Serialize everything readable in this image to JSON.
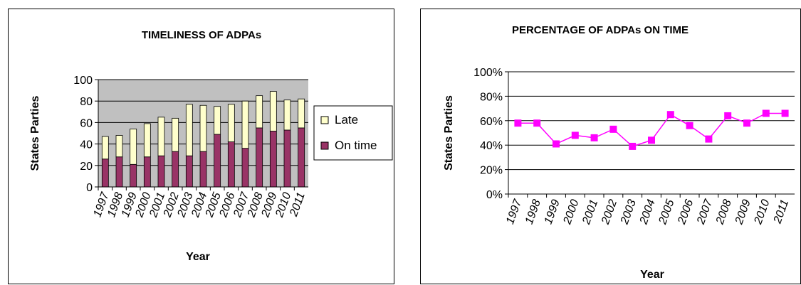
{
  "chart_data": [
    {
      "type": "bar",
      "stacked": true,
      "title": "TIMELINESS OF ADPAs",
      "xlabel": "Year",
      "ylabel": "States Parties",
      "ylim": [
        0,
        100
      ],
      "yticks": [
        0,
        20,
        40,
        60,
        80,
        100
      ],
      "categories": [
        "1997",
        "1998",
        "1999",
        "2000",
        "2001",
        "2002",
        "2003",
        "2004",
        "2005",
        "2006",
        "2007",
        "2008",
        "2009",
        "2010",
        "2011"
      ],
      "series": [
        {
          "name": "On time",
          "color": "#993366",
          "values": [
            26,
            28,
            21,
            28,
            29,
            33,
            29,
            33,
            49,
            42,
            36,
            55,
            52,
            53,
            55
          ]
        },
        {
          "name": "Late",
          "color": "#ffffcc",
          "values": [
            21,
            20,
            33,
            31,
            36,
            31,
            48,
            43,
            26,
            35,
            44,
            30,
            37,
            28,
            27
          ]
        }
      ],
      "legend": "right",
      "legend_order": [
        "Late",
        "On time"
      ],
      "plot_background": "#c0c0c0",
      "grid": true
    },
    {
      "type": "line",
      "title": "PERCENTAGE OF ADPAs ON TIME",
      "xlabel": "Year",
      "ylabel": "States Parties",
      "ylim": [
        0,
        100
      ],
      "yticks": [
        "0%",
        "20%",
        "40%",
        "60%",
        "80%",
        "100%"
      ],
      "ytick_values": [
        0,
        20,
        40,
        60,
        80,
        100
      ],
      "categories": [
        "1997",
        "1998",
        "1999",
        "2000",
        "2001",
        "2002",
        "2003",
        "2004",
        "2005",
        "2006",
        "2007",
        "2008",
        "2009",
        "2010",
        "2011"
      ],
      "series": [
        {
          "color": "#ff00ff",
          "values": [
            58,
            58,
            41,
            48,
            46,
            53,
            39,
            44,
            65,
            56,
            45,
            64,
            58,
            66,
            66
          ]
        }
      ],
      "grid": true
    }
  ]
}
